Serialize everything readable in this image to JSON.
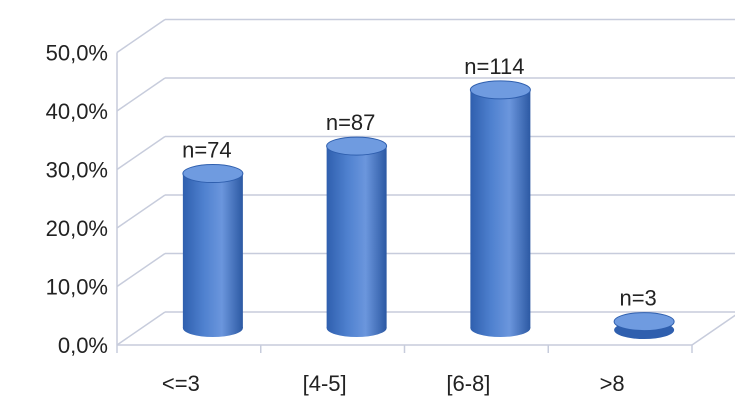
{
  "chart_data": {
    "type": "bar",
    "categories": [
      "<=3",
      "[4-5]",
      "[6-8]",
      ">8"
    ],
    "values": [
      26.4,
      31.1,
      40.7,
      1.1
    ],
    "data_labels": [
      "n=74",
      "n=87",
      "n=114",
      "n=3"
    ],
    "y_ticks": [
      "0,0%",
      "10,0%",
      "20,0%",
      "30,0%",
      "40,0%",
      "50,0%"
    ],
    "ylim": [
      0,
      50
    ],
    "grid": true,
    "legend": "none",
    "colors": {
      "bar": "#4f81cf",
      "bar_dark": "#2f5fae",
      "bar_top": "#6f9be0",
      "grid": "#c7ccdc"
    }
  }
}
